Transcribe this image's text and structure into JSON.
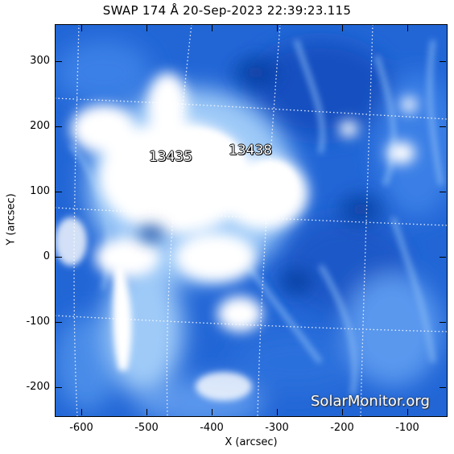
{
  "title": "SWAP 174 Å 20-Sep-2023 22:39:23.115",
  "axes": {
    "xlabel": "X (arcsec)",
    "ylabel": "Y (arcsec)",
    "xrange": [
      -640,
      -40
    ],
    "yrange": [
      -245,
      355
    ],
    "xticks": [
      "-600",
      "-500",
      "-400",
      "-300",
      "-200",
      "-100"
    ],
    "yticks": [
      "300",
      "200",
      "100",
      "0",
      "-100",
      "-200"
    ]
  },
  "regions": {
    "r1": "13435",
    "r2": "13438"
  },
  "watermark": "SolarMonitor.org",
  "colors": {
    "background": "#1e5fd0",
    "bright": "#ffffff",
    "grid": "#ffffff"
  }
}
